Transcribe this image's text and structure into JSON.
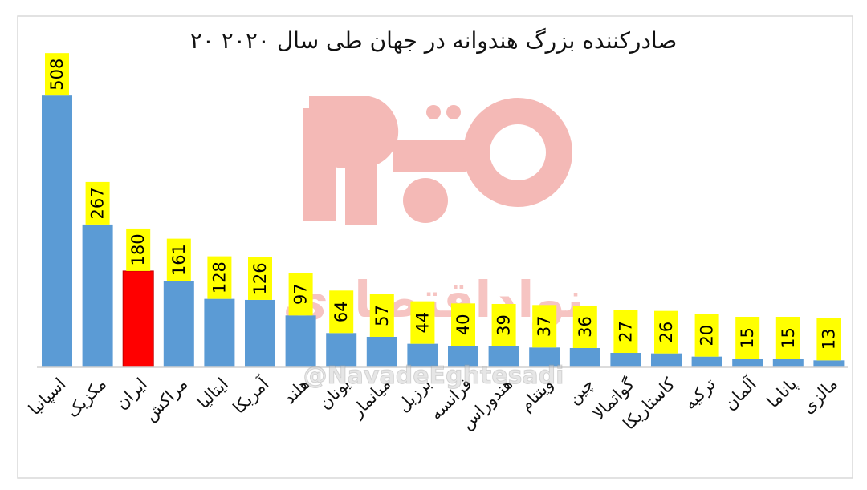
{
  "chart_data": {
    "type": "bar",
    "title": "۲۰ صادرکننده بزرگ هندوانه در جهان طی سال ۲۰۲۰",
    "xlabel": "",
    "ylabel": "",
    "grid": false,
    "legend": "none",
    "categories": [
      "اسپانیا",
      "مکزیک",
      "ایران",
      "مراکش",
      "ایتالیا",
      "آمریکا",
      "هلند",
      "یونان",
      "میانمار",
      "برزیل",
      "فرانسه",
      "هندوراس",
      "ویتنام",
      "چین",
      "گواتمالا",
      "کاستاریکا",
      "ترکیه",
      "آلمان",
      "پاناما",
      "مالزی"
    ],
    "values": [
      508,
      267,
      180,
      161,
      128,
      126,
      97,
      64,
      57,
      44,
      40,
      39,
      37,
      36,
      27,
      26,
      20,
      15,
      15,
      13
    ],
    "highlight_index": 2,
    "colors": {
      "bar": "#5b9bd5",
      "highlight": "#ff0000",
      "label_bg": "#ffff00",
      "watermark": "#f4b6b3"
    }
  },
  "watermark": {
    "brand_text": "نواداقتصادی",
    "handle": "@NavadeEghtesadi"
  }
}
